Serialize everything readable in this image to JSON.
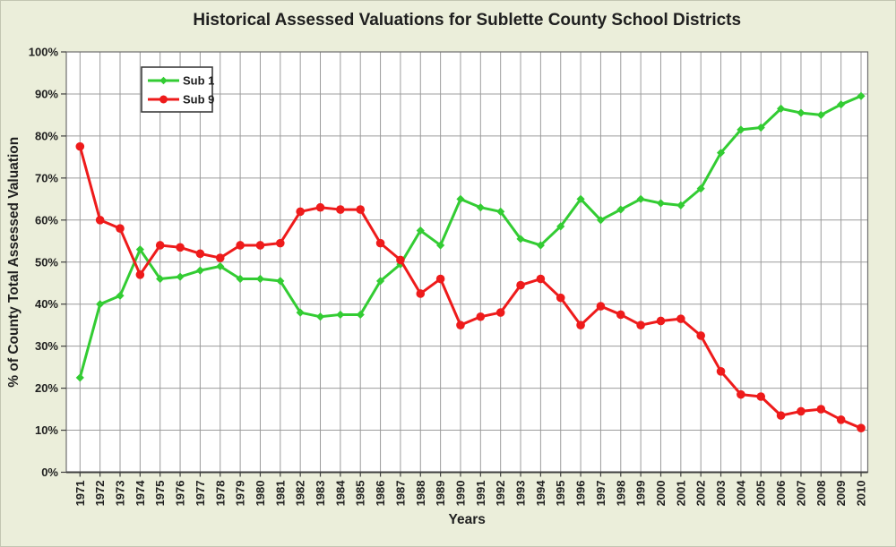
{
  "page": {
    "background_color": "#ebeeda",
    "plot_background_color": "#ffffff",
    "gridline_color": "#9c9c9c",
    "axis_color": "#3f3f3f",
    "text_color": "#1f1f1f"
  },
  "chart_data": {
    "type": "line",
    "title": "Historical Assessed Valuations for Sublette County School Districts",
    "xlabel": "Years",
    "ylabel": "% of County Total Assessed Valuation",
    "ylim": [
      0,
      100
    ],
    "y_tick_step": 10,
    "y_tick_labels": [
      "0%",
      "10%",
      "20%",
      "30%",
      "40%",
      "50%",
      "60%",
      "70%",
      "80%",
      "90%",
      "100%"
    ],
    "grid": true,
    "legend_position": "inside-top-left",
    "categories": [
      "1971",
      "1972",
      "1973",
      "1974",
      "1975",
      "1976",
      "1977",
      "1978",
      "1979",
      "1980",
      "1981",
      "1982",
      "1983",
      "1984",
      "1985",
      "1986",
      "1987",
      "1988",
      "1989",
      "1990",
      "1991",
      "1992",
      "1993",
      "1994",
      "1995",
      "1996",
      "1997",
      "1998",
      "1999",
      "2000",
      "2001",
      "2002",
      "2003",
      "2004",
      "2005",
      "2006",
      "2007",
      "2008",
      "2009",
      "2010"
    ],
    "series": [
      {
        "name": "Sub 1",
        "color": "#33cc33",
        "marker": "diamond",
        "values": [
          22.5,
          40,
          42,
          53,
          46,
          46.5,
          48,
          49,
          46,
          46,
          45.5,
          38,
          37,
          37.5,
          37.5,
          45.5,
          49.5,
          57.5,
          54,
          65,
          63,
          62,
          55.5,
          54,
          58.5,
          65,
          60,
          62.5,
          65,
          64,
          63.5,
          67.5,
          76,
          81.5,
          82,
          86.5,
          85.5,
          85,
          87.5,
          89.5
        ]
      },
      {
        "name": "Sub 9",
        "color": "#ee1b1b",
        "marker": "circle",
        "values": [
          77.5,
          60,
          58,
          47,
          54,
          53.5,
          52,
          51,
          54,
          54,
          54.5,
          62,
          63,
          62.5,
          62.5,
          54.5,
          50.5,
          42.5,
          46,
          35,
          37,
          38,
          44.5,
          46,
          41.5,
          35,
          39.5,
          37.5,
          35,
          36,
          36.5,
          32.5,
          24,
          18.5,
          18,
          13.5,
          14.5,
          15,
          12.5,
          10.5
        ]
      }
    ]
  }
}
